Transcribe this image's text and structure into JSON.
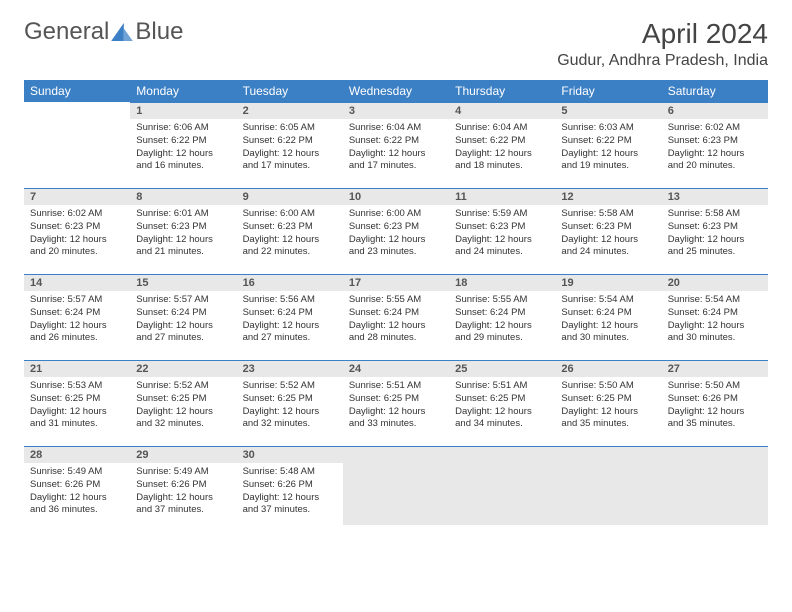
{
  "logo": {
    "text1": "General",
    "text2": "Blue"
  },
  "title": "April 2024",
  "location": "Gudur, Andhra Pradesh, India",
  "colors": {
    "header_bg": "#3b7fc4",
    "header_text": "#ffffff",
    "daynum_bg": "#e8e8e8"
  },
  "weekdays": [
    "Sunday",
    "Monday",
    "Tuesday",
    "Wednesday",
    "Thursday",
    "Friday",
    "Saturday"
  ],
  "days": [
    {
      "n": "1",
      "sr": "6:06 AM",
      "ss": "6:22 PM",
      "dl": "12 hours and 16 minutes."
    },
    {
      "n": "2",
      "sr": "6:05 AM",
      "ss": "6:22 PM",
      "dl": "12 hours and 17 minutes."
    },
    {
      "n": "3",
      "sr": "6:04 AM",
      "ss": "6:22 PM",
      "dl": "12 hours and 17 minutes."
    },
    {
      "n": "4",
      "sr": "6:04 AM",
      "ss": "6:22 PM",
      "dl": "12 hours and 18 minutes."
    },
    {
      "n": "5",
      "sr": "6:03 AM",
      "ss": "6:22 PM",
      "dl": "12 hours and 19 minutes."
    },
    {
      "n": "6",
      "sr": "6:02 AM",
      "ss": "6:23 PM",
      "dl": "12 hours and 20 minutes."
    },
    {
      "n": "7",
      "sr": "6:02 AM",
      "ss": "6:23 PM",
      "dl": "12 hours and 20 minutes."
    },
    {
      "n": "8",
      "sr": "6:01 AM",
      "ss": "6:23 PM",
      "dl": "12 hours and 21 minutes."
    },
    {
      "n": "9",
      "sr": "6:00 AM",
      "ss": "6:23 PM",
      "dl": "12 hours and 22 minutes."
    },
    {
      "n": "10",
      "sr": "6:00 AM",
      "ss": "6:23 PM",
      "dl": "12 hours and 23 minutes."
    },
    {
      "n": "11",
      "sr": "5:59 AM",
      "ss": "6:23 PM",
      "dl": "12 hours and 24 minutes."
    },
    {
      "n": "12",
      "sr": "5:58 AM",
      "ss": "6:23 PM",
      "dl": "12 hours and 24 minutes."
    },
    {
      "n": "13",
      "sr": "5:58 AM",
      "ss": "6:23 PM",
      "dl": "12 hours and 25 minutes."
    },
    {
      "n": "14",
      "sr": "5:57 AM",
      "ss": "6:24 PM",
      "dl": "12 hours and 26 minutes."
    },
    {
      "n": "15",
      "sr": "5:57 AM",
      "ss": "6:24 PM",
      "dl": "12 hours and 27 minutes."
    },
    {
      "n": "16",
      "sr": "5:56 AM",
      "ss": "6:24 PM",
      "dl": "12 hours and 27 minutes."
    },
    {
      "n": "17",
      "sr": "5:55 AM",
      "ss": "6:24 PM",
      "dl": "12 hours and 28 minutes."
    },
    {
      "n": "18",
      "sr": "5:55 AM",
      "ss": "6:24 PM",
      "dl": "12 hours and 29 minutes."
    },
    {
      "n": "19",
      "sr": "5:54 AM",
      "ss": "6:24 PM",
      "dl": "12 hours and 30 minutes."
    },
    {
      "n": "20",
      "sr": "5:54 AM",
      "ss": "6:24 PM",
      "dl": "12 hours and 30 minutes."
    },
    {
      "n": "21",
      "sr": "5:53 AM",
      "ss": "6:25 PM",
      "dl": "12 hours and 31 minutes."
    },
    {
      "n": "22",
      "sr": "5:52 AM",
      "ss": "6:25 PM",
      "dl": "12 hours and 32 minutes."
    },
    {
      "n": "23",
      "sr": "5:52 AM",
      "ss": "6:25 PM",
      "dl": "12 hours and 32 minutes."
    },
    {
      "n": "24",
      "sr": "5:51 AM",
      "ss": "6:25 PM",
      "dl": "12 hours and 33 minutes."
    },
    {
      "n": "25",
      "sr": "5:51 AM",
      "ss": "6:25 PM",
      "dl": "12 hours and 34 minutes."
    },
    {
      "n": "26",
      "sr": "5:50 AM",
      "ss": "6:25 PM",
      "dl": "12 hours and 35 minutes."
    },
    {
      "n": "27",
      "sr": "5:50 AM",
      "ss": "6:26 PM",
      "dl": "12 hours and 35 minutes."
    },
    {
      "n": "28",
      "sr": "5:49 AM",
      "ss": "6:26 PM",
      "dl": "12 hours and 36 minutes."
    },
    {
      "n": "29",
      "sr": "5:49 AM",
      "ss": "6:26 PM",
      "dl": "12 hours and 37 minutes."
    },
    {
      "n": "30",
      "sr": "5:48 AM",
      "ss": "6:26 PM",
      "dl": "12 hours and 37 minutes."
    }
  ],
  "labels": {
    "sunrise": "Sunrise:",
    "sunset": "Sunset:",
    "daylight": "Daylight:"
  },
  "start_offset": 1,
  "total_cells": 35
}
